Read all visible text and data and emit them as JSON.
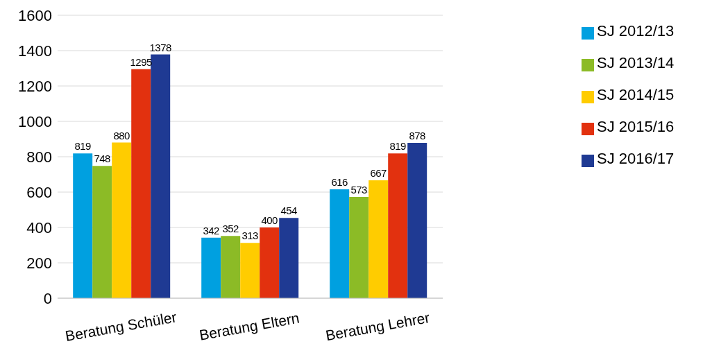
{
  "chart_data": {
    "type": "bar",
    "categories": [
      "Beratung Schüler",
      "Beratung Eltern",
      "Beratung Lehrer"
    ],
    "series": [
      {
        "name": "SJ 2012/13",
        "color": "#00a0e0",
        "values": [
          819,
          342,
          616
        ]
      },
      {
        "name": "SJ 2013/14",
        "color": "#8cbb26",
        "values": [
          748,
          352,
          573
        ]
      },
      {
        "name": "SJ 2014/15",
        "color": "#ffcc00",
        "values": [
          880,
          313,
          667
        ]
      },
      {
        "name": "SJ 2015/16",
        "color": "#e2310f",
        "values": [
          1295,
          400,
          819
        ]
      },
      {
        "name": "SJ 2016/17",
        "color": "#1f3a93",
        "values": [
          1378,
          454,
          878
        ]
      }
    ],
    "ylim": [
      0,
      1600
    ],
    "yticks": [
      0,
      200,
      400,
      600,
      800,
      1000,
      1200,
      1400,
      1600
    ],
    "grid": "y",
    "legend": "right",
    "data_labels": true
  }
}
